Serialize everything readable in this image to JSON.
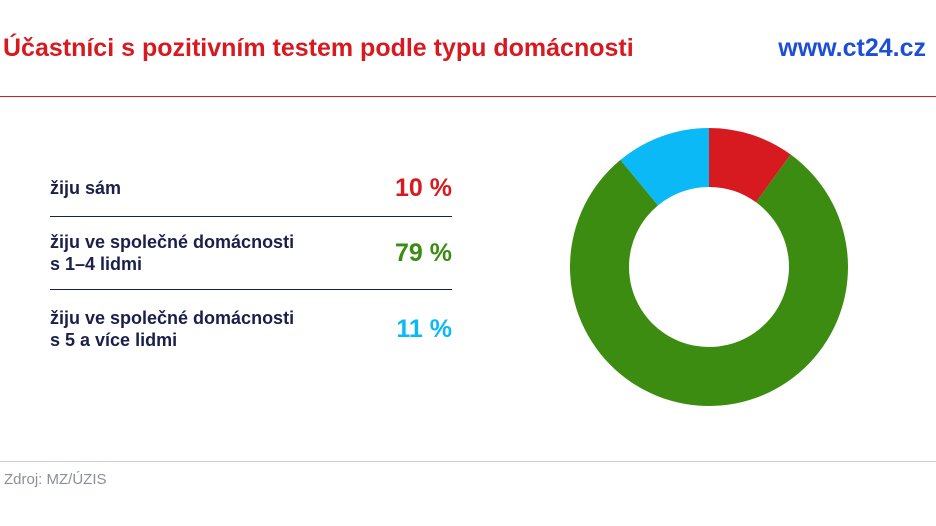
{
  "header": {
    "title": "Účastníci s pozitivním testem podle typu domácnosti",
    "site": "www.ct24.cz"
  },
  "legend": [
    {
      "label": "žiju sám",
      "value_text": "10 %",
      "color": "#d71920"
    },
    {
      "label": "žiju ve společné domácnosti\ns 1–4 lidmi",
      "value_text": "79 %",
      "color": "#3c8c12"
    },
    {
      "label": "žiju ve společné domácnosti\ns 5 a více lidmi",
      "value_text": "11 %",
      "color": "#0ab9f5"
    }
  ],
  "footer": {
    "source": "Zdroj: MZ/ÚZIS"
  },
  "chart_data": {
    "type": "pie",
    "title": "Účastníci s pozitivním testem podle typu domácnosti",
    "categories": [
      "žiju sám",
      "žiju ve společné domácnosti s 1–4 lidmi",
      "žiju ve společné domácnosti s 5 a více lidmi"
    ],
    "values": [
      10,
      79,
      11
    ],
    "unit": "%",
    "colors": [
      "#d71920",
      "#3c8c12",
      "#0ab9f5"
    ],
    "donut": true
  }
}
